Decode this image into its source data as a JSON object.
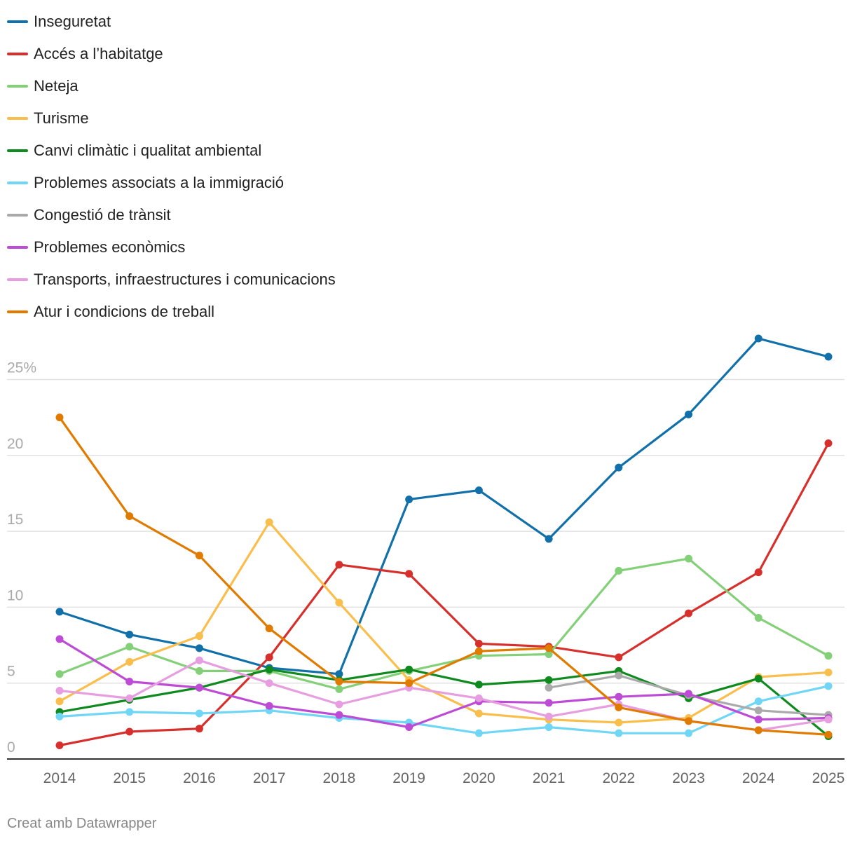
{
  "chart_data": {
    "type": "line",
    "title": "",
    "xlabel": "",
    "ylabel": "",
    "ylim": [
      0,
      28
    ],
    "y_ticks": [
      {
        "value": 0,
        "label": "0"
      },
      {
        "value": 5,
        "label": "5"
      },
      {
        "value": 10,
        "label": "10"
      },
      {
        "value": 15,
        "label": "15"
      },
      {
        "value": 20,
        "label": "20"
      },
      {
        "value": 25,
        "label": "25%"
      }
    ],
    "categories": [
      "2014",
      "2015",
      "2016",
      "2017",
      "2018",
      "2019",
      "2020",
      "2021",
      "2022",
      "2023",
      "2024",
      "2025"
    ],
    "series": [
      {
        "name": "Inseguretat",
        "color": "#1170aa",
        "values": [
          9.7,
          8.2,
          7.3,
          6.0,
          5.6,
          17.1,
          17.7,
          14.5,
          19.2,
          22.7,
          27.7,
          26.5
        ]
      },
      {
        "name": "Accés a l’habitatge",
        "color": "#d7302c",
        "values": [
          0.9,
          1.8,
          2.0,
          6.7,
          12.8,
          12.2,
          7.6,
          7.4,
          6.7,
          9.6,
          12.3,
          20.8
        ]
      },
      {
        "name": "Neteja",
        "color": "#84d078",
        "values": [
          5.6,
          7.4,
          5.8,
          5.8,
          4.6,
          5.8,
          6.8,
          6.9,
          12.4,
          13.2,
          9.3,
          6.8
        ]
      },
      {
        "name": "Turisme",
        "color": "#f9be4c",
        "values": [
          3.8,
          6.4,
          8.1,
          15.6,
          10.3,
          5.2,
          3.0,
          2.6,
          2.4,
          2.7,
          5.4,
          5.7
        ]
      },
      {
        "name": "Canvi climàtic i qualitat ambiental",
        "color": "#0f8a1e",
        "values": [
          3.1,
          3.9,
          4.7,
          5.9,
          5.2,
          5.9,
          4.9,
          5.2,
          5.8,
          4.0,
          5.3,
          1.5
        ]
      },
      {
        "name": "Problemes associats a la immigració",
        "color": "#70d6f5",
        "values": [
          2.8,
          3.1,
          3.0,
          3.2,
          2.7,
          2.4,
          1.7,
          2.1,
          1.7,
          1.7,
          3.8,
          4.8
        ]
      },
      {
        "name": "Congestió de trànsit",
        "color": "#aaaaaa",
        "values": [
          null,
          null,
          null,
          null,
          null,
          null,
          null,
          4.7,
          5.5,
          4.2,
          3.2,
          2.9
        ]
      },
      {
        "name": "Problemes econòmics",
        "color": "#bd4bd6",
        "values": [
          7.9,
          5.1,
          4.7,
          3.5,
          2.9,
          2.1,
          3.8,
          3.7,
          4.1,
          4.3,
          2.6,
          2.7
        ]
      },
      {
        "name": "Transports, infraestructures i comunicacions",
        "color": "#e79ee0",
        "values": [
          4.5,
          4.0,
          6.5,
          5.0,
          3.6,
          4.7,
          4.0,
          2.8,
          3.6,
          2.5,
          1.9,
          2.6
        ]
      },
      {
        "name": "Atur i condicions de treball",
        "color": "#e07b00",
        "values": [
          22.5,
          16.0,
          13.4,
          8.6,
          5.1,
          5.0,
          7.1,
          7.3,
          3.4,
          2.5,
          1.9,
          1.6
        ]
      }
    ]
  },
  "footer": {
    "credit": "Creat amb Datawrapper"
  }
}
